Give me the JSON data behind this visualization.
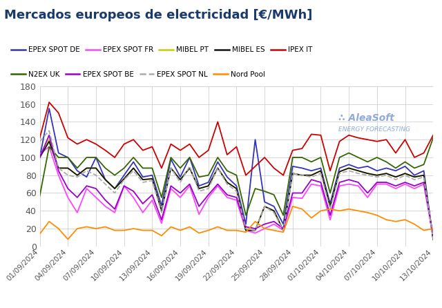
{
  "title": "Mercados europeos de electricidad [€/MWh]",
  "title_color": "#1a3a6b",
  "background_color": "#ffffff",
  "grid_color": "#c8c8c8",
  "ylim": [
    0,
    180
  ],
  "yticks": [
    0,
    20,
    40,
    60,
    80,
    100,
    120,
    140,
    160,
    180
  ],
  "xtick_labels": [
    "01/09/2024",
    "04/09/2024",
    "07/09/2024",
    "10/09/2024",
    "13/09/2024",
    "16/09/2024",
    "19/09/2024",
    "22/09/2024",
    "25/09/2024",
    "28/09/2024",
    "01/10/2024",
    "04/10/2024",
    "07/10/2024",
    "10/10/2024",
    "13/10/2024"
  ],
  "series": [
    {
      "label": "EPEX SPOT DE",
      "color": "#3333bb",
      "linestyle": "-",
      "linewidth": 1.3,
      "values": [
        100,
        155,
        105,
        100,
        85,
        78,
        100,
        75,
        65,
        80,
        95,
        78,
        80,
        46,
        98,
        78,
        100,
        68,
        72,
        95,
        78,
        68,
        25,
        120,
        50,
        45,
        25,
        90,
        88,
        85,
        88,
        48,
        88,
        92,
        88,
        90,
        85,
        88,
        85,
        90,
        80,
        85,
        8
      ]
    },
    {
      "label": "EPEX SPOT FR",
      "color": "#ff44ff",
      "linestyle": "-",
      "linewidth": 1.3,
      "values": [
        104,
        112,
        80,
        55,
        38,
        65,
        55,
        45,
        38,
        68,
        55,
        38,
        52,
        26,
        65,
        55,
        68,
        36,
        55,
        68,
        55,
        52,
        18,
        15,
        20,
        25,
        18,
        55,
        54,
        70,
        68,
        30,
        68,
        70,
        68,
        55,
        70,
        70,
        65,
        70,
        65,
        70,
        10
      ]
    },
    {
      "label": "MIBEL PT",
      "color": "#cccc00",
      "linestyle": "-",
      "linewidth": 1.3,
      "values": [
        100,
        120,
        88,
        88,
        80,
        88,
        88,
        75,
        65,
        76,
        88,
        75,
        76,
        40,
        88,
        75,
        88,
        65,
        68,
        88,
        72,
        65,
        18,
        18,
        45,
        40,
        18,
        82,
        80,
        80,
        85,
        45,
        84,
        88,
        85,
        82,
        80,
        82,
        78,
        82,
        78,
        80,
        8
      ]
    },
    {
      "label": "MIBEL ES",
      "color": "#111111",
      "linestyle": "-",
      "linewidth": 1.3,
      "values": [
        100,
        118,
        88,
        88,
        80,
        88,
        88,
        75,
        65,
        76,
        88,
        75,
        76,
        40,
        88,
        75,
        88,
        65,
        68,
        88,
        72,
        65,
        18,
        18,
        45,
        40,
        18,
        82,
        80,
        80,
        85,
        45,
        84,
        88,
        85,
        82,
        80,
        82,
        78,
        82,
        78,
        80,
        8
      ]
    },
    {
      "label": "IPEX IT",
      "color": "#cc0000",
      "linestyle": "-",
      "linewidth": 1.3,
      "values": [
        122,
        162,
        150,
        122,
        115,
        120,
        115,
        108,
        100,
        115,
        120,
        108,
        112,
        88,
        115,
        108,
        115,
        100,
        108,
        140,
        103,
        112,
        80,
        90,
        100,
        88,
        80,
        108,
        110,
        126,
        125,
        85,
        118,
        125,
        122,
        120,
        118,
        120,
        105,
        120,
        100,
        105,
        125
      ]
    },
    {
      "label": "N2EX UK",
      "color": "#336600",
      "linestyle": "-",
      "linewidth": 1.3,
      "values": [
        57,
        112,
        100,
        100,
        88,
        100,
        100,
        88,
        80,
        88,
        100,
        88,
        88,
        55,
        100,
        88,
        100,
        78,
        80,
        100,
        85,
        80,
        35,
        65,
        62,
        58,
        35,
        100,
        100,
        95,
        100,
        60,
        100,
        105,
        100,
        95,
        100,
        95,
        88,
        95,
        88,
        92,
        122
      ]
    },
    {
      "label": "EPEX SPOT BE",
      "color": "#9900cc",
      "linestyle": "-",
      "linewidth": 1.3,
      "values": [
        100,
        125,
        85,
        65,
        55,
        68,
        65,
        52,
        42,
        68,
        62,
        48,
        58,
        30,
        68,
        60,
        70,
        45,
        58,
        70,
        58,
        55,
        22,
        20,
        25,
        28,
        20,
        60,
        60,
        75,
        72,
        35,
        72,
        75,
        72,
        60,
        72,
        72,
        68,
        72,
        68,
        72,
        12
      ]
    },
    {
      "label": "EPEX SPOT NL",
      "color": "#aaaaaa",
      "linestyle": "--",
      "linewidth": 1.3,
      "values": [
        118,
        130,
        88,
        80,
        78,
        85,
        80,
        70,
        60,
        75,
        85,
        72,
        74,
        38,
        88,
        72,
        90,
        62,
        65,
        88,
        70,
        62,
        20,
        18,
        45,
        38,
        18,
        82,
        80,
        78,
        82,
        42,
        82,
        85,
        82,
        80,
        78,
        80,
        75,
        80,
        75,
        78,
        8
      ]
    },
    {
      "label": "Nord Pool",
      "color": "#ff8c00",
      "linestyle": "-",
      "linewidth": 1.3,
      "values": [
        14,
        28,
        20,
        8,
        20,
        22,
        20,
        22,
        18,
        18,
        20,
        18,
        18,
        12,
        22,
        18,
        22,
        15,
        18,
        22,
        18,
        18,
        16,
        28,
        20,
        18,
        16,
        45,
        42,
        32,
        40,
        42,
        40,
        42,
        40,
        38,
        35,
        30,
        28,
        30,
        25,
        18,
        20
      ]
    }
  ],
  "legend_row1": [
    "EPEX SPOT DE",
    "EPEX SPOT FR",
    "MIBEL PT",
    "MIBEL ES",
    "IPEX IT"
  ],
  "legend_row2": [
    "N2EX UK",
    "EPEX SPOT BE",
    "EPEX SPOT NL",
    "Nord Pool"
  ],
  "watermark_text1": "∴ AleaSoft",
  "watermark_text2": "ENERGY FORECASTING",
  "watermark_color": "#4472c4",
  "watermark_alpha": 0.6
}
